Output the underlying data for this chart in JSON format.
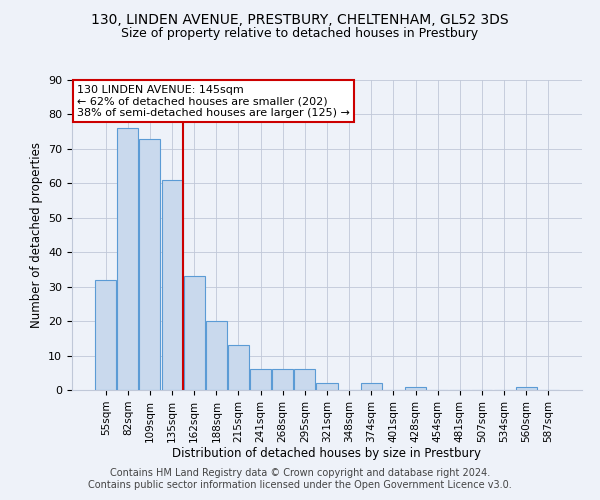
{
  "title": "130, LINDEN AVENUE, PRESTBURY, CHELTENHAM, GL52 3DS",
  "subtitle": "Size of property relative to detached houses in Prestbury",
  "xlabel": "Distribution of detached houses by size in Prestbury",
  "ylabel": "Number of detached properties",
  "bar_labels": [
    "55sqm",
    "82sqm",
    "109sqm",
    "135sqm",
    "162sqm",
    "188sqm",
    "215sqm",
    "241sqm",
    "268sqm",
    "295sqm",
    "321sqm",
    "348sqm",
    "374sqm",
    "401sqm",
    "428sqm",
    "454sqm",
    "481sqm",
    "507sqm",
    "534sqm",
    "560sqm",
    "587sqm"
  ],
  "bar_values": [
    32,
    76,
    73,
    61,
    33,
    20,
    13,
    6,
    6,
    6,
    2,
    0,
    2,
    0,
    1,
    0,
    0,
    0,
    0,
    1,
    0
  ],
  "bar_color": "#c9d9ed",
  "bar_edge_color": "#5b9bd5",
  "vline_x": 3.5,
  "vline_color": "#cc0000",
  "ylim": [
    0,
    90
  ],
  "yticks": [
    0,
    10,
    20,
    30,
    40,
    50,
    60,
    70,
    80,
    90
  ],
  "annotation_text": "130 LINDEN AVENUE: 145sqm\n← 62% of detached houses are smaller (202)\n38% of semi-detached houses are larger (125) →",
  "annotation_box_color": "#ffffff",
  "annotation_box_edge": "#cc0000",
  "footer_line1": "Contains HM Land Registry data © Crown copyright and database right 2024.",
  "footer_line2": "Contains public sector information licensed under the Open Government Licence v3.0.",
  "bg_color": "#eef2f9",
  "title_fontsize": 10,
  "subtitle_fontsize": 9,
  "footer_fontsize": 7
}
